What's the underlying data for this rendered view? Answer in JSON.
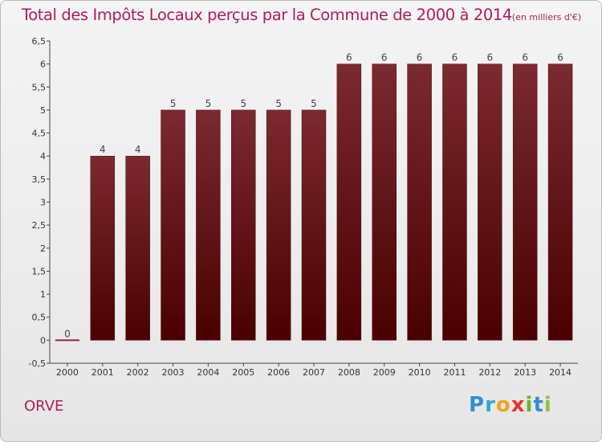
{
  "title": "Total des Impôts Locaux perçus par la Commune de 2000 à 2014",
  "unit": "(en milliers d'€)",
  "commune": "ORVE",
  "logo": {
    "p": "P",
    "r": "r",
    "o": "o",
    "x": "x",
    "i1": "i",
    "t": "t",
    "i2": "i"
  },
  "colors": {
    "title": "#b01c5a",
    "bar_top": "#7a2a30",
    "bar_bottom": "#4a0000"
  },
  "chart_data": {
    "type": "bar",
    "title": "Total des Impôts Locaux perçus par la Commune de 2000 à 2014",
    "ylabel": "en milliers d'€",
    "xlabel": "",
    "categories": [
      "2000",
      "2001",
      "2002",
      "2003",
      "2004",
      "2005",
      "2006",
      "2007",
      "2008",
      "2009",
      "2010",
      "2011",
      "2012",
      "2013",
      "2014"
    ],
    "values": [
      0,
      4,
      4,
      5,
      5,
      5,
      5,
      5,
      6,
      6,
      6,
      6,
      6,
      6,
      6
    ],
    "value_labels": [
      "0",
      "4",
      "4",
      "5",
      "5",
      "5",
      "5",
      "5",
      "6",
      "6",
      "6",
      "6",
      "6",
      "6",
      "6"
    ],
    "ylim": [
      -0.5,
      6.5
    ],
    "yticks": [
      -0.5,
      0,
      0.5,
      1,
      1.5,
      2,
      2.5,
      3,
      3.5,
      4,
      4.5,
      5,
      5.5,
      6,
      6.5
    ],
    "ytick_labels": [
      "-0,5",
      "0",
      "0,5",
      "1",
      "1,5",
      "2",
      "2,5",
      "3",
      "3,5",
      "4",
      "4,5",
      "5",
      "5,5",
      "6",
      "6,5"
    ],
    "grid": false,
    "legend": "none"
  }
}
